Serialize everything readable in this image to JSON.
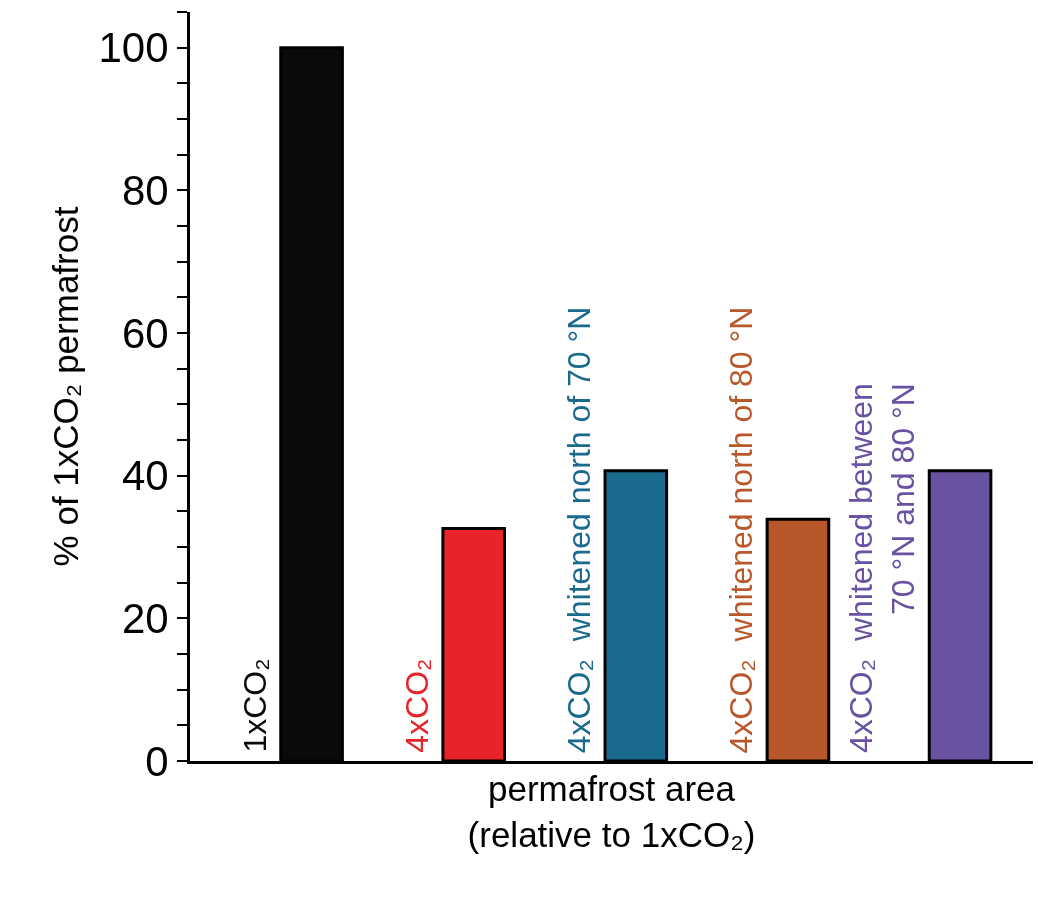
{
  "chart_data": {
    "type": "bar",
    "categories": [
      "1xCO₂",
      "4xCO₂",
      "4xCO₂  whitened north of 70 °N",
      "4xCO₂  whitened north of 80 °N",
      "4xCO₂  whitened between\n70 °N and 80 °N"
    ],
    "values": [
      100,
      32.6,
      40.7,
      33.9,
      40.7
    ],
    "colors": [
      "#0a0a0a",
      "#e8232a",
      "#1a6a8e",
      "#b8582a",
      "#6a52a3"
    ],
    "xlabel": "permafrost area\n(relative to 1xCO₂)",
    "ylabel": "% of 1xCO₂ permafrost",
    "ylim": [
      0,
      105
    ],
    "yticks": [
      0,
      {
        "value": 5,
        "label": null
      },
      {
        "value": 10,
        "label": null
      },
      {
        "value": 15,
        "label": null
      },
      20,
      {
        "value": 25,
        "label": null
      },
      {
        "value": 30,
        "label": null
      },
      {
        "value": 35,
        "label": null
      },
      40,
      {
        "value": 45,
        "label": null
      },
      {
        "value": 50,
        "label": null
      },
      {
        "value": 55,
        "label": null
      },
      60,
      {
        "value": 65,
        "label": null
      },
      {
        "value": 70,
        "label": null
      },
      {
        "value": 75,
        "label": null
      },
      80,
      {
        "value": 85,
        "label": null
      },
      {
        "value": 90,
        "label": null
      },
      {
        "value": 95,
        "label": null
      },
      100,
      {
        "value": 105,
        "label": null
      }
    ],
    "tick_labels": "y"
  }
}
